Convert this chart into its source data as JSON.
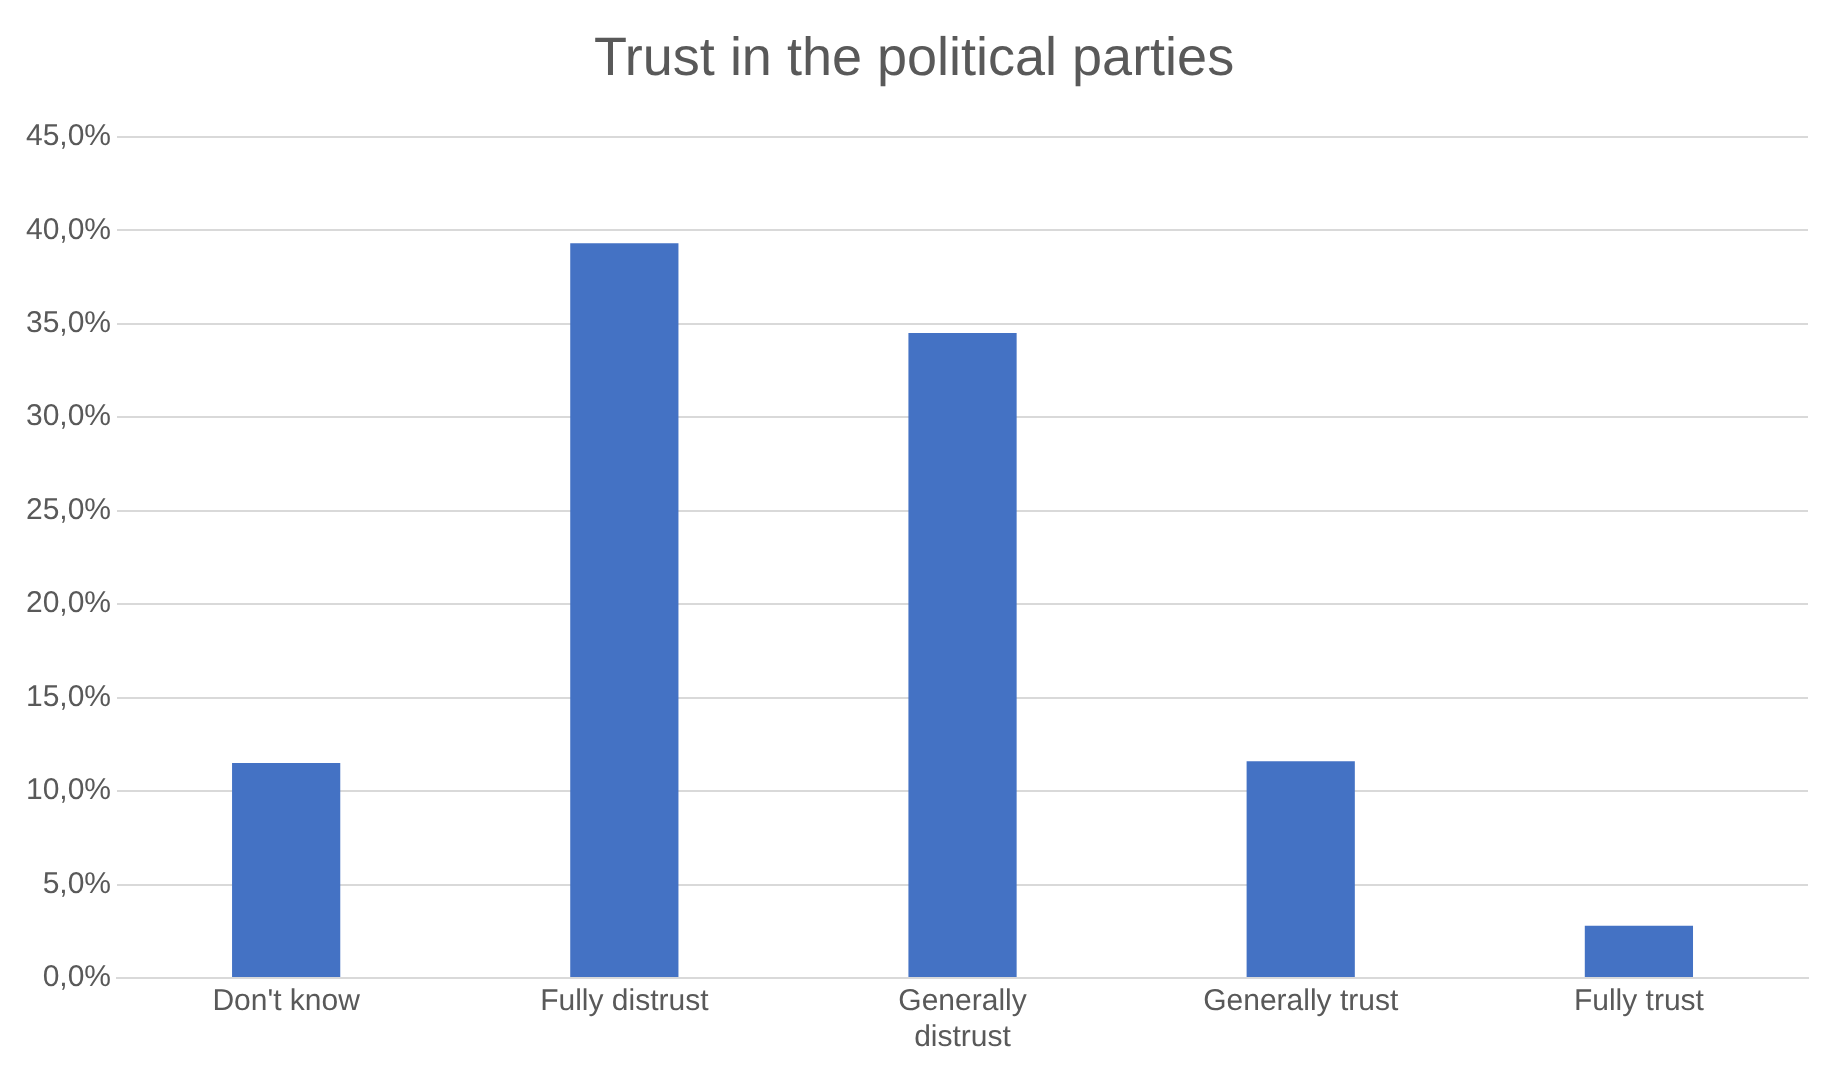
{
  "chart_data": {
    "type": "bar",
    "title": "Trust in the political parties",
    "categories": [
      "Don't know",
      "Fully distrust",
      "Generally distrust",
      "Generally trust",
      "Fully trust"
    ],
    "values": [
      11.5,
      39.3,
      34.5,
      11.6,
      2.8
    ],
    "color": "#4472c4",
    "ylim": [
      0,
      45
    ],
    "yticks": [
      {
        "value": 0,
        "label": "0,0%"
      },
      {
        "value": 5,
        "label": "5,0%"
      },
      {
        "value": 10,
        "label": "10,0%"
      },
      {
        "value": 15,
        "label": "15,0%"
      },
      {
        "value": 20,
        "label": "20,0%"
      },
      {
        "value": 25,
        "label": "25,0%"
      },
      {
        "value": 30,
        "label": "30,0%"
      },
      {
        "value": 35,
        "label": "35,0%"
      },
      {
        "value": 40,
        "label": "40,0%"
      },
      {
        "value": 45,
        "label": "45,0%"
      }
    ],
    "grid": "y",
    "legend": false
  }
}
